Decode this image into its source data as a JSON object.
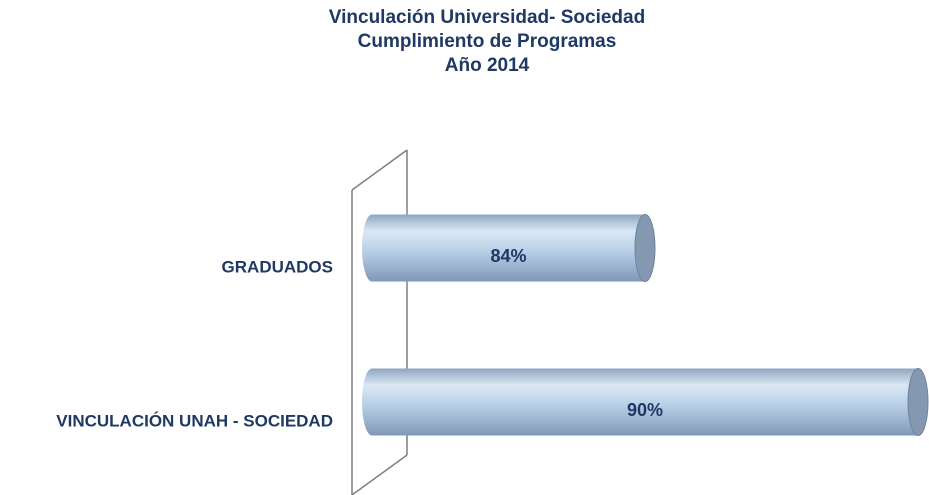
{
  "chart_data": {
    "type": "bar",
    "orientation": "horizontal",
    "title": [
      "Vinculación Universidad- Sociedad",
      "Cumplimiento de Programas",
      "Año 2014"
    ],
    "categories": [
      "GRADUADOS",
      "VINCULACIÓN UNAH - SOCIEDAD"
    ],
    "values": [
      84,
      90
    ],
    "value_labels": [
      "84%",
      "90%"
    ],
    "color": "#b8cfe6",
    "xlim": [
      78,
      90
    ]
  }
}
